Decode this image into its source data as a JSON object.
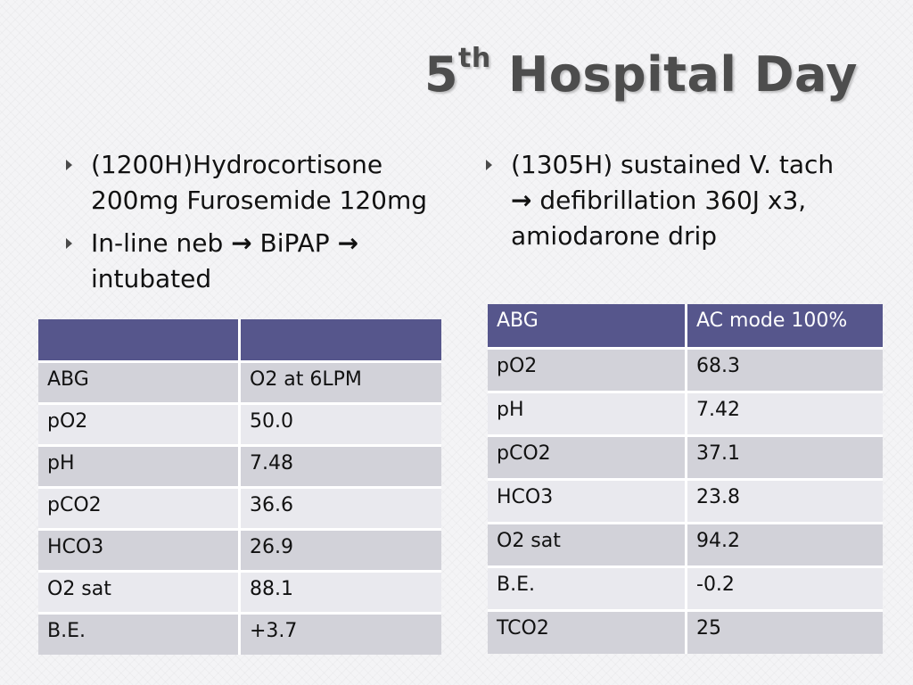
{
  "slide": {
    "title_number": "5",
    "title_superscript": "th",
    "title_rest": " Hospital Day"
  },
  "left_bullets": {
    "item1": "(1200H)Hydrocortisone 200mg  Furosemide 120mg",
    "item2_a": "In-line neb ",
    "item2_b": " BiPAP ",
    "item2_c": " intubated",
    "arrow": "→"
  },
  "right_bullets": {
    "item1_a": "(1305H) sustained V. tach ",
    "item1_b": " defibrillation 360J x3, amiodarone drip",
    "arrow": "→"
  },
  "table_left": {
    "header": [
      "",
      ""
    ],
    "rows": [
      [
        "ABG",
        "O2 at 6LPM"
      ],
      [
        "pO2",
        "50.0"
      ],
      [
        "pH",
        "7.48"
      ],
      [
        "pCO2",
        "36.6"
      ],
      [
        "HCO3",
        "26.9"
      ],
      [
        "O2 sat",
        "88.1"
      ],
      [
        "B.E.",
        "+3.7"
      ]
    ]
  },
  "table_right": {
    "header": [
      "ABG",
      "AC mode 100%"
    ],
    "rows": [
      [
        "pO2",
        "68.3"
      ],
      [
        "pH",
        "7.42"
      ],
      [
        "pCO2",
        "37.1"
      ],
      [
        "HCO3",
        "23.8"
      ],
      [
        "O2 sat",
        "94.2"
      ],
      [
        "B.E.",
        "-0.2"
      ],
      [
        "TCO2",
        "25"
      ]
    ]
  },
  "colors": {
    "header_fill": "#56568c",
    "row_odd": "#d2d2d9",
    "row_even": "#e9e9ee",
    "title": "#4d4d4d"
  }
}
